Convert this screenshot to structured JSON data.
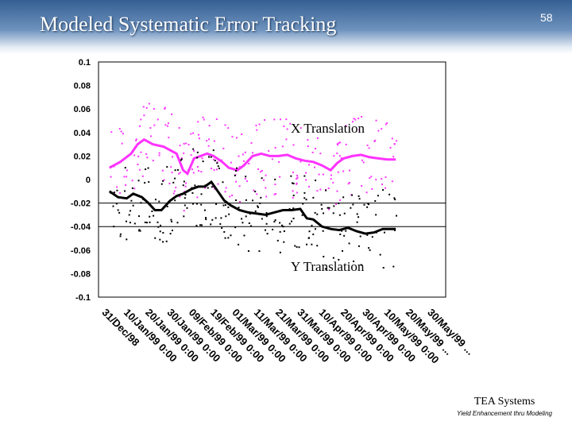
{
  "slide": {
    "title": "Modeled Systematic Error Tracking",
    "number": "58",
    "company": "TEA Systems",
    "tagline": "Yield Enhancement thru Modeling"
  },
  "colors": {
    "x_series": "#ff33ff",
    "y_series": "#000000",
    "background": "#ffffff",
    "header": "#4a74a8"
  },
  "chart_data": {
    "type": "line",
    "title": "",
    "xlabel": "",
    "ylabel": "",
    "ylim": [
      -0.1,
      0.1
    ],
    "yticks": [
      "0.1",
      "0.08",
      "0.06",
      "0.04",
      "0.02",
      "0",
      "-0.02",
      "-0.04",
      "-0.06",
      "-0.08",
      "-0.1"
    ],
    "xticks": [
      "31/Dec/98",
      "10/Jan/99 0:00",
      "20/Jan/99 0:00",
      "30/Jan/99 0:00",
      "09/Feb/99 0:00",
      "19/Feb/99 0:00",
      "01/Mar/99 0:00",
      "11/Mar/99 0:00",
      "21/Mar/99 0:00",
      "31/Mar/99 0:00",
      "10/Apr/99 0:00",
      "20/Apr/99 0:00",
      "30/Apr/99 0:00",
      "10/May/99 0:00",
      "20/May/99 ...",
      "30/May/99 ..."
    ],
    "reference_lines": [
      -0.02,
      -0.04
    ],
    "annotations": [
      "X Translation",
      "Y Translation"
    ],
    "series": [
      {
        "label": "X Translation",
        "color": "#ff33ff",
        "x_index": [
          0,
          0.5,
          1,
          1.3,
          1.6,
          2,
          2.5,
          2.8,
          3.1,
          3.4,
          3.6,
          3.9,
          4.2,
          4.5,
          4.8,
          5.2,
          5.5,
          5.9,
          6.2,
          6.6,
          7,
          7.4,
          7.8,
          8.2,
          8.6,
          9,
          9.4,
          9.8,
          10.2,
          10.5,
          10.8,
          11.2,
          11.6,
          12,
          12.4,
          12.8,
          13.2
        ],
        "values": [
          0.01,
          0.015,
          0.022,
          0.03,
          0.034,
          0.03,
          0.028,
          0.025,
          0.022,
          0.008,
          0.005,
          0.018,
          0.02,
          0.022,
          0.02,
          0.015,
          0.01,
          0.008,
          0.012,
          0.02,
          0.022,
          0.02,
          0.02,
          0.021,
          0.018,
          0.016,
          0.015,
          0.012,
          0.008,
          0.014,
          0.018,
          0.02,
          0.021,
          0.019,
          0.018,
          0.017,
          0.017
        ]
      },
      {
        "label": "Y Translation",
        "color": "#000000",
        "x_index": [
          0,
          0.4,
          0.8,
          1.1,
          1.5,
          1.8,
          2.1,
          2.4,
          2.8,
          3.1,
          3.4,
          3.8,
          4.1,
          4.4,
          4.7,
          5,
          5.3,
          5.6,
          6,
          6.4,
          6.8,
          7.2,
          7.6,
          8,
          8.4,
          8.8,
          9.1,
          9.4,
          9.8,
          10.2,
          10.6,
          11,
          11.4,
          11.8,
          12.2,
          12.6,
          13.2
        ],
        "values": [
          -0.01,
          -0.015,
          -0.016,
          -0.012,
          -0.015,
          -0.02,
          -0.026,
          -0.026,
          -0.018,
          -0.014,
          -0.012,
          -0.008,
          -0.006,
          -0.006,
          -0.002,
          -0.01,
          -0.018,
          -0.022,
          -0.026,
          -0.028,
          -0.029,
          -0.03,
          -0.028,
          -0.026,
          -0.026,
          -0.025,
          -0.033,
          -0.034,
          -0.04,
          -0.042,
          -0.043,
          -0.041,
          -0.044,
          -0.046,
          -0.045,
          -0.042,
          -0.042
        ]
      }
    ]
  }
}
